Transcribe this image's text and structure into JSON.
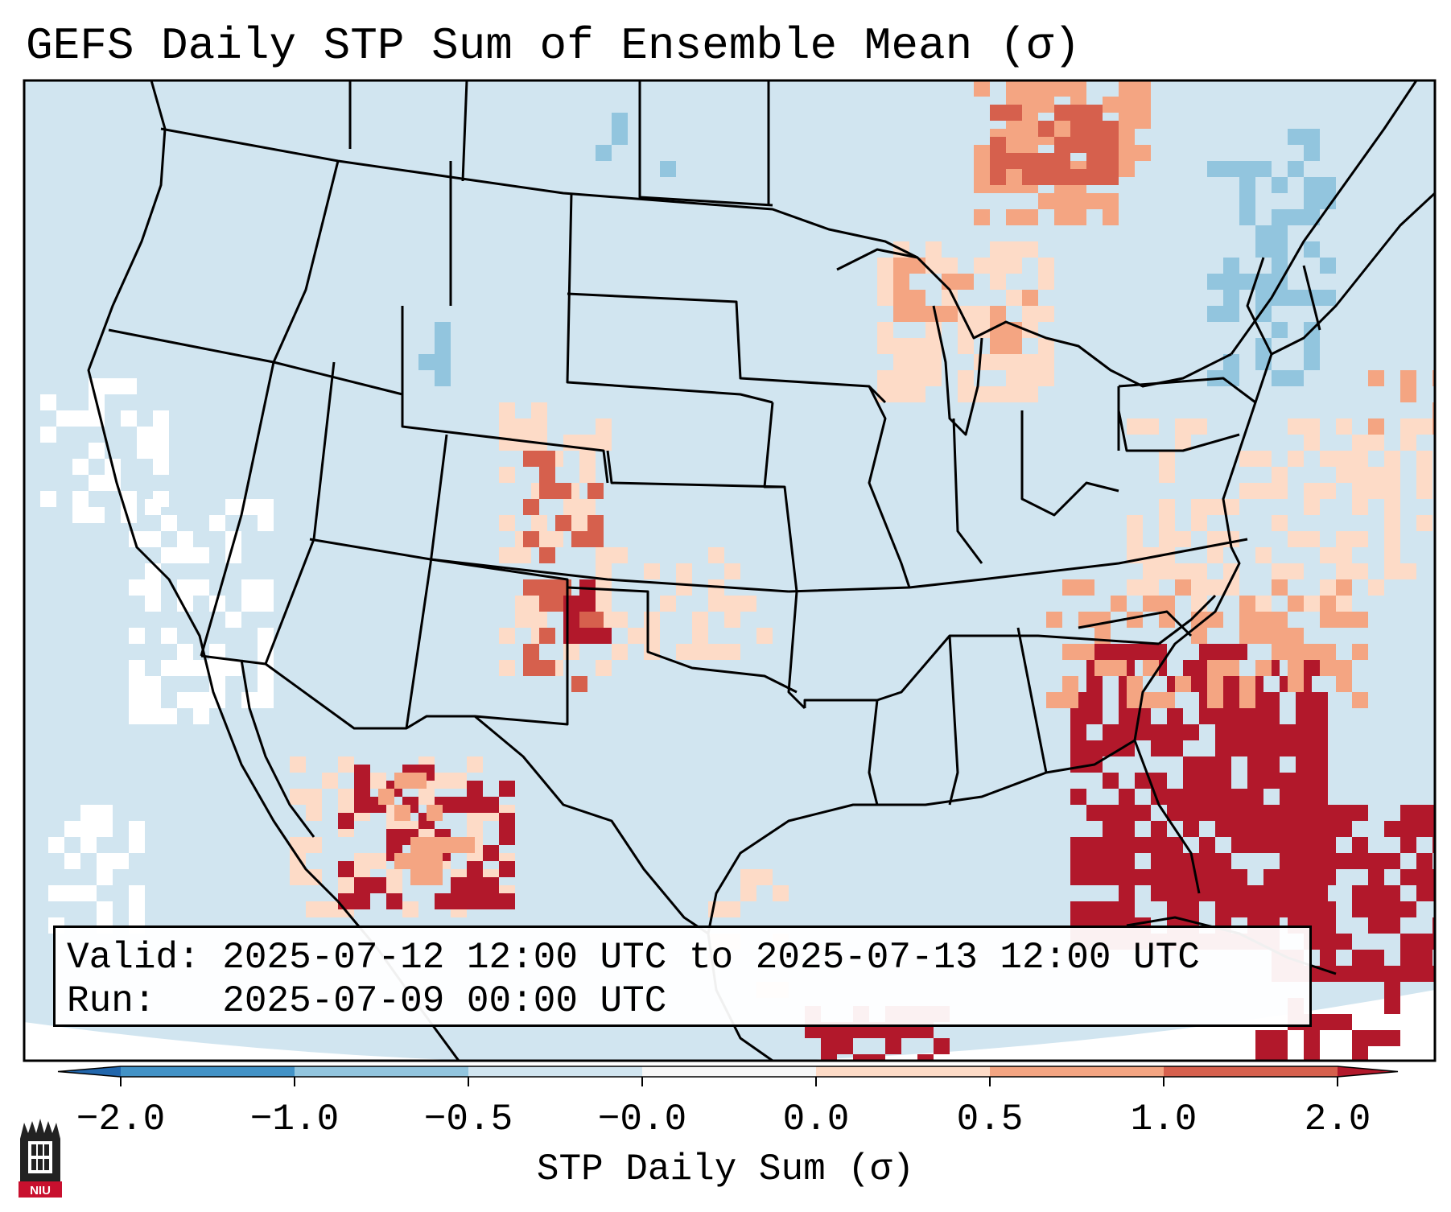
{
  "title": "GEFS Daily STP Sum of Ensemble Mean (σ)",
  "info": {
    "valid_label": "Valid:",
    "valid_value": "2025-07-12 12:00 UTC to 2025-07-13 12:00 UTC",
    "run_label": "Run:",
    "run_value": "2025-07-09 00:00 UTC"
  },
  "colorbar": {
    "label": "STP Daily Sum (σ)",
    "ticks": [
      "−2.0",
      "−1.0",
      "−0.5",
      "−0.0",
      "0.0",
      "0.5",
      "1.0",
      "2.0"
    ],
    "segments": [
      {
        "range": [
          -2.0,
          -1.0
        ],
        "color": "#4292c6"
      },
      {
        "range": [
          -1.0,
          -0.5
        ],
        "color": "#92c5de"
      },
      {
        "range": [
          -0.5,
          -0.0
        ],
        "color": "#d1e5f0"
      },
      {
        "range": [
          -0.0,
          0.0
        ],
        "color": "#f7f7f7"
      },
      {
        "range": [
          0.0,
          0.5
        ],
        "color": "#fddbc7"
      },
      {
        "range": [
          0.5,
          1.0
        ],
        "color": "#f4a582"
      },
      {
        "range": [
          1.0,
          2.0
        ],
        "color": "#d6604d"
      }
    ],
    "under_color": "#2166ac",
    "over_color": "#b2182b"
  },
  "colors": {
    "background_field": "#d1e5f0",
    "zero_field": "#ffffff",
    "light_red": "#fddbc7",
    "mid_red": "#f4a582",
    "red": "#d6604d",
    "dark_red": "#b2182b",
    "light_blue": "#92c5de",
    "map_lines": "#000000"
  },
  "logo": {
    "text": "NIU",
    "icon": "university-building-icon"
  }
}
